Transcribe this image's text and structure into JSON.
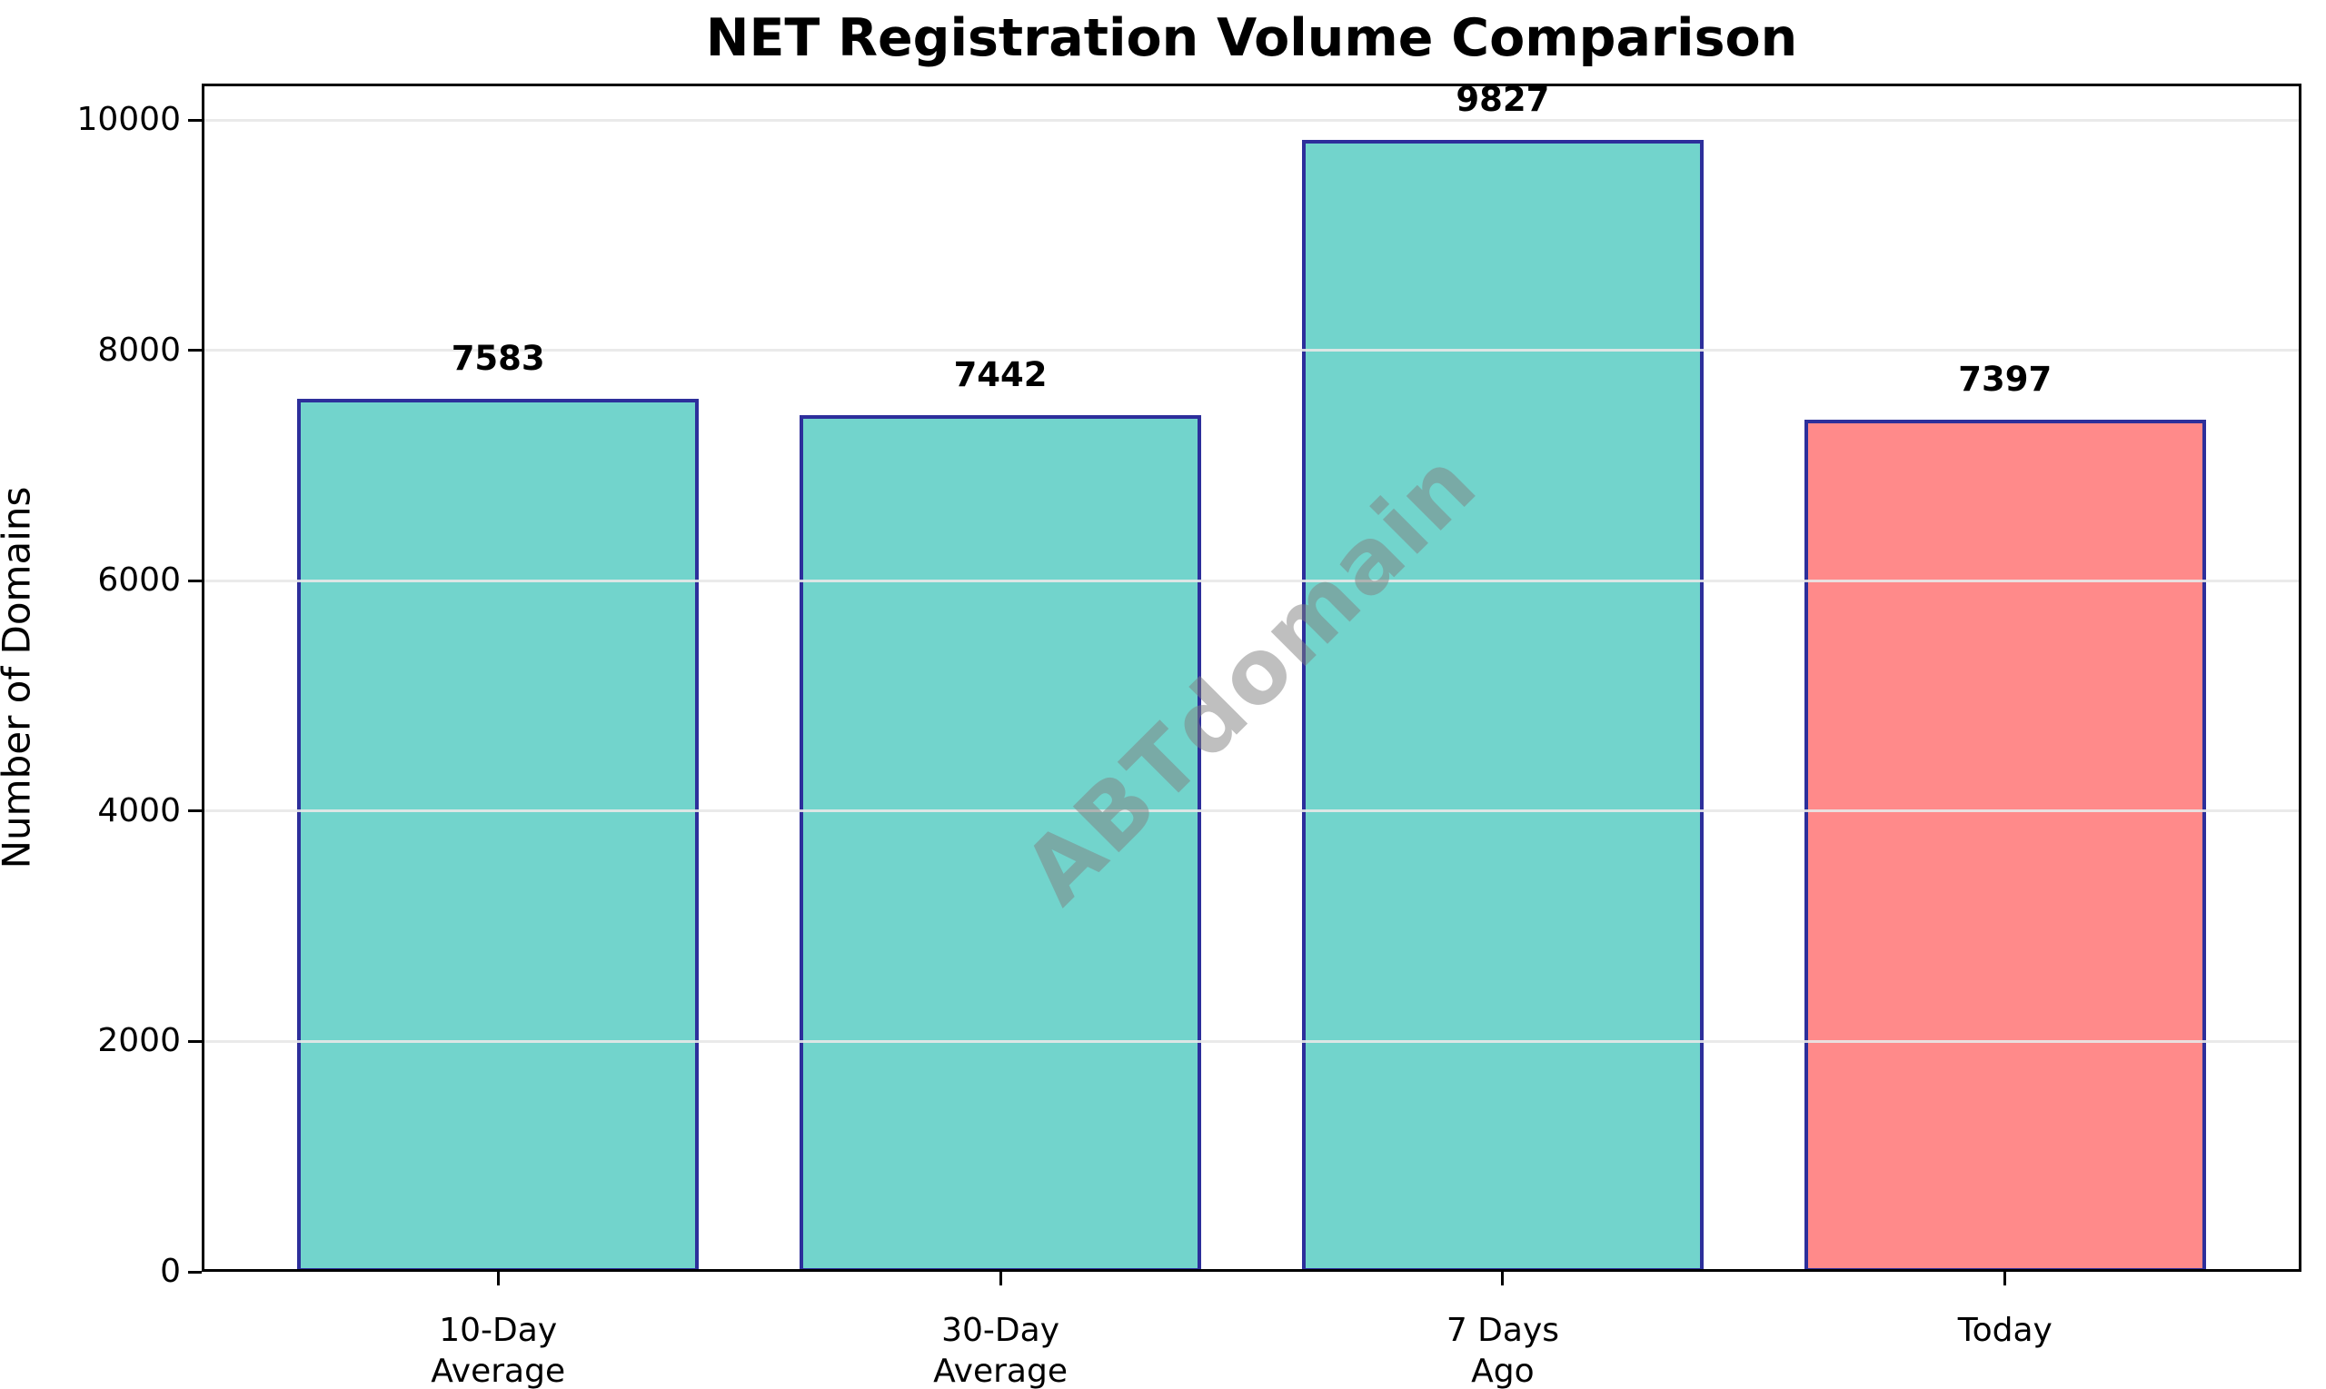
{
  "chart_data": {
    "type": "bar",
    "title": "NET Registration Volume Comparison",
    "xlabel": "",
    "ylabel": "Number of Domains",
    "categories": [
      "10-Day\nAverage",
      "30-Day\nAverage",
      "7 Days\nAgo",
      "Today"
    ],
    "values": [
      7583,
      7442,
      9827,
      7397
    ],
    "value_labels": [
      "7583",
      "7442",
      "9827",
      "7397"
    ],
    "bar_colors": [
      "#72D4CC",
      "#72D4CC",
      "#72D4CC",
      "#FF8A8A"
    ],
    "bar_edge_color": "#2D2F9B",
    "bar_width": 0.8,
    "xlim": [
      -0.59,
      3.59
    ],
    "ylim": [
      0,
      10318
    ],
    "yticks": [
      0,
      2000,
      4000,
      6000,
      8000,
      10000
    ],
    "grid": true,
    "grid_color": "#E8E8E8",
    "axis_color": "#000000",
    "legend_position": "none",
    "watermark": "ABTdomain",
    "watermark_angle_deg": -45,
    "watermark_color": "#808080"
  }
}
